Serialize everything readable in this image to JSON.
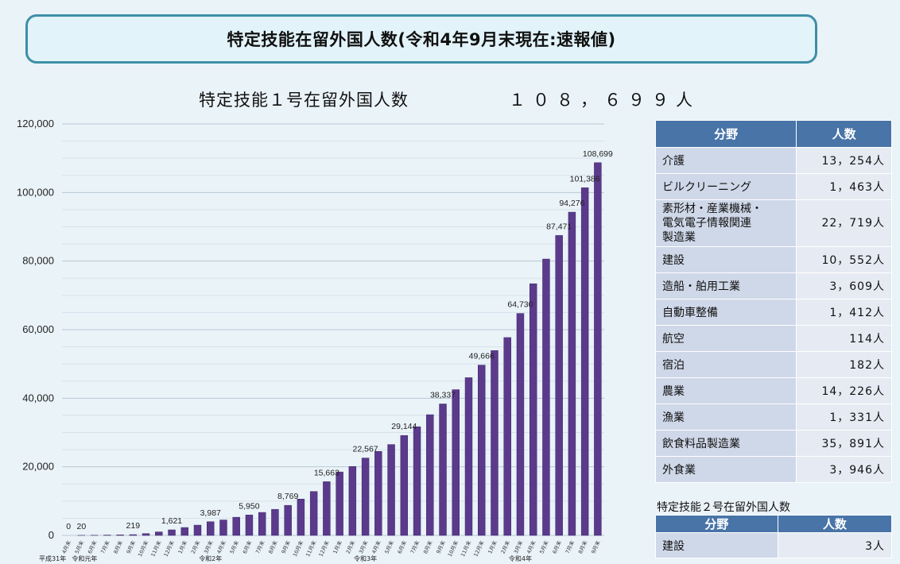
{
  "banner_title": "特定技能在留外国人数(令和4年9月末現在:速報値)",
  "subtitle": "特定技能１号在留外国人数",
  "total": "１０８，６９９人",
  "chart_data": {
    "type": "bar",
    "ylim": [
      0,
      120000
    ],
    "yticks": [
      0,
      20000,
      40000,
      60000,
      80000,
      100000,
      120000
    ],
    "ytick_labels": [
      "0",
      "20,000",
      "40,000",
      "60,000",
      "80,000",
      "100,000",
      "120,000"
    ],
    "grid": true,
    "bar_color": "#5b3a8c",
    "categories": [
      "4月末",
      "5月末",
      "6月末",
      "7月末",
      "8月末",
      "9月末",
      "10月末",
      "11月末",
      "12月末",
      "1月末",
      "2月末",
      "3月末",
      "4月末",
      "5月末",
      "6月末",
      "7月末",
      "8月末",
      "9月末",
      "10月末",
      "11月末",
      "12月末",
      "1月末",
      "2月末",
      "3月末",
      "4月末",
      "5月末",
      "6月末",
      "7月末",
      "8月末",
      "9月末",
      "10月末",
      "11月末",
      "12月末",
      "1月末",
      "2月末",
      "3月末",
      "4月末",
      "5月末",
      "6月末",
      "7月末",
      "8月末",
      "9月末"
    ],
    "values": [
      0,
      20,
      44,
      100,
      150,
      219,
      520,
      1019,
      1621,
      2300,
      2994,
      3987,
      4500,
      5300,
      5950,
      6700,
      7600,
      8769,
      10600,
      12800,
      15663,
      18500,
      20100,
      22567,
      24500,
      26500,
      29144,
      31700,
      35200,
      38337,
      42500,
      46000,
      49666,
      53900,
      57700,
      64730,
      73400,
      80600,
      87471,
      94276,
      101386,
      108699
    ],
    "data_labels": {
      "0": "0",
      "1": "20",
      "5": "219",
      "8": "1,621",
      "11": "3,987",
      "14": "5,950",
      "17": "8,769",
      "20": "15,663",
      "23": "22,567",
      "26": "29,144",
      "29": "38,337",
      "32": "49,666",
      "35": "64,730",
      "38": "87,471",
      "39": "94,276",
      "40": "101,386",
      "41": "108,699"
    },
    "era_labels": [
      {
        "index": 0,
        "text": "平成31年"
      },
      {
        "index": 1,
        "text": "令和元年"
      },
      {
        "index": 11,
        "text": "令和2年"
      },
      {
        "index": 23,
        "text": "令和3年"
      },
      {
        "index": 35,
        "text": "令和4年"
      }
    ]
  },
  "table1": {
    "headers": [
      "分野",
      "人数"
    ],
    "rows": [
      {
        "name": "介護",
        "value": "13，254人"
      },
      {
        "name": "ビルクリーニング",
        "value": "1，463人"
      },
      {
        "name": "素形材・産業機械・\n電気電子情報関連\n製造業",
        "value": "22，719人"
      },
      {
        "name": "建設",
        "value": "10，552人"
      },
      {
        "name": "造船・舶用工業",
        "value": "3，609人"
      },
      {
        "name": "自動車整備",
        "value": "1，412人"
      },
      {
        "name": "航空",
        "value": "114人"
      },
      {
        "name": "宿泊",
        "value": "182人"
      },
      {
        "name": "農業",
        "value": "14，226人"
      },
      {
        "name": "漁業",
        "value": "1，331人"
      },
      {
        "name": "飲食料品製造業",
        "value": "35，891人"
      },
      {
        "name": "外食業",
        "value": "3，946人"
      }
    ]
  },
  "table2": {
    "title": "特定技能２号在留外国人数",
    "headers": [
      "分野",
      "人数"
    ],
    "rows": [
      {
        "name": "建設",
        "value": "3人"
      }
    ]
  }
}
